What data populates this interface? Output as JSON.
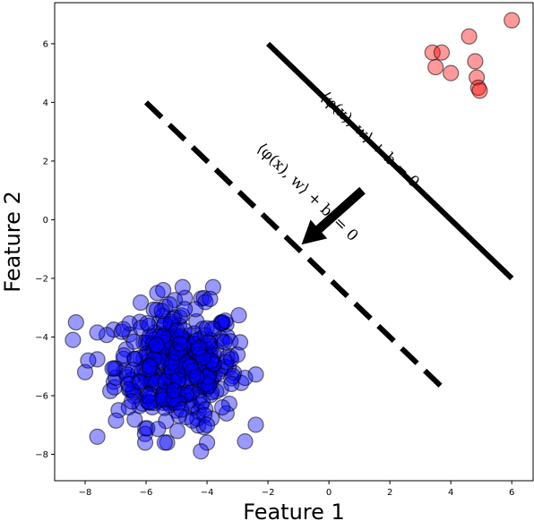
{
  "chart_data": {
    "type": "scatter",
    "title": "",
    "xlabel": "Feature 1",
    "ylabel": "Feature 2",
    "xlim": [
      -9,
      6.7
    ],
    "ylim": [
      -8.9,
      7.4
    ],
    "xticks": [
      "−8",
      "−6",
      "−4",
      "−2",
      "0",
      "2",
      "4",
      "6"
    ],
    "yticks": [
      "−8",
      "−6",
      "−4",
      "−2",
      "0",
      "2",
      "4",
      "6"
    ],
    "grid": false,
    "legend": "none",
    "series": [
      {
        "color": "#ff0000",
        "alpha": 0.4,
        "points": [
          [
            3.4,
            5.7
          ],
          [
            3.7,
            5.7
          ],
          [
            3.5,
            5.2
          ],
          [
            4.0,
            5.0
          ],
          [
            4.6,
            6.25
          ],
          [
            4.8,
            5.4
          ],
          [
            4.85,
            4.85
          ],
          [
            4.9,
            4.5
          ],
          [
            4.95,
            4.4
          ],
          [
            6.0,
            6.8
          ]
        ]
      },
      {
        "color": "#0000ff",
        "alpha": 0.4,
        "cluster": {
          "center": [
            -5.0,
            -5.0
          ],
          "spread": 1.0,
          "count": 400
        },
        "points": [
          [
            -8.3,
            -3.5
          ],
          [
            -8.4,
            -4.1
          ],
          [
            -8.0,
            -5.2
          ],
          [
            -7.9,
            -4.8
          ],
          [
            -7.6,
            -7.4
          ],
          [
            -4.0,
            -7.0
          ],
          [
            -4.0,
            -7.6
          ],
          [
            -4.2,
            -7.9
          ],
          [
            -4.8,
            -2.3
          ],
          [
            -3.8,
            -2.3
          ],
          [
            -3.9,
            -2.7
          ],
          [
            -3.0,
            -4.6
          ],
          [
            -3.5,
            -6.4
          ],
          [
            -3.2,
            -5.6
          ]
        ]
      }
    ],
    "lines": [
      {
        "style": "solid",
        "x": [
          -2,
          6
        ],
        "y": [
          6.0,
          -2.0
        ],
        "label": "⟨φ(x), w⟩ + b = 0"
      },
      {
        "style": "dashed",
        "x": [
          -6,
          3.9
        ],
        "y": [
          4.0,
          -5.9
        ],
        "label": "⟨φ(x), w⟩ + b′ = 0"
      }
    ],
    "arrow": {
      "from": [
        1.1,
        1.0
      ],
      "to": [
        -0.9,
        -0.85
      ]
    }
  }
}
